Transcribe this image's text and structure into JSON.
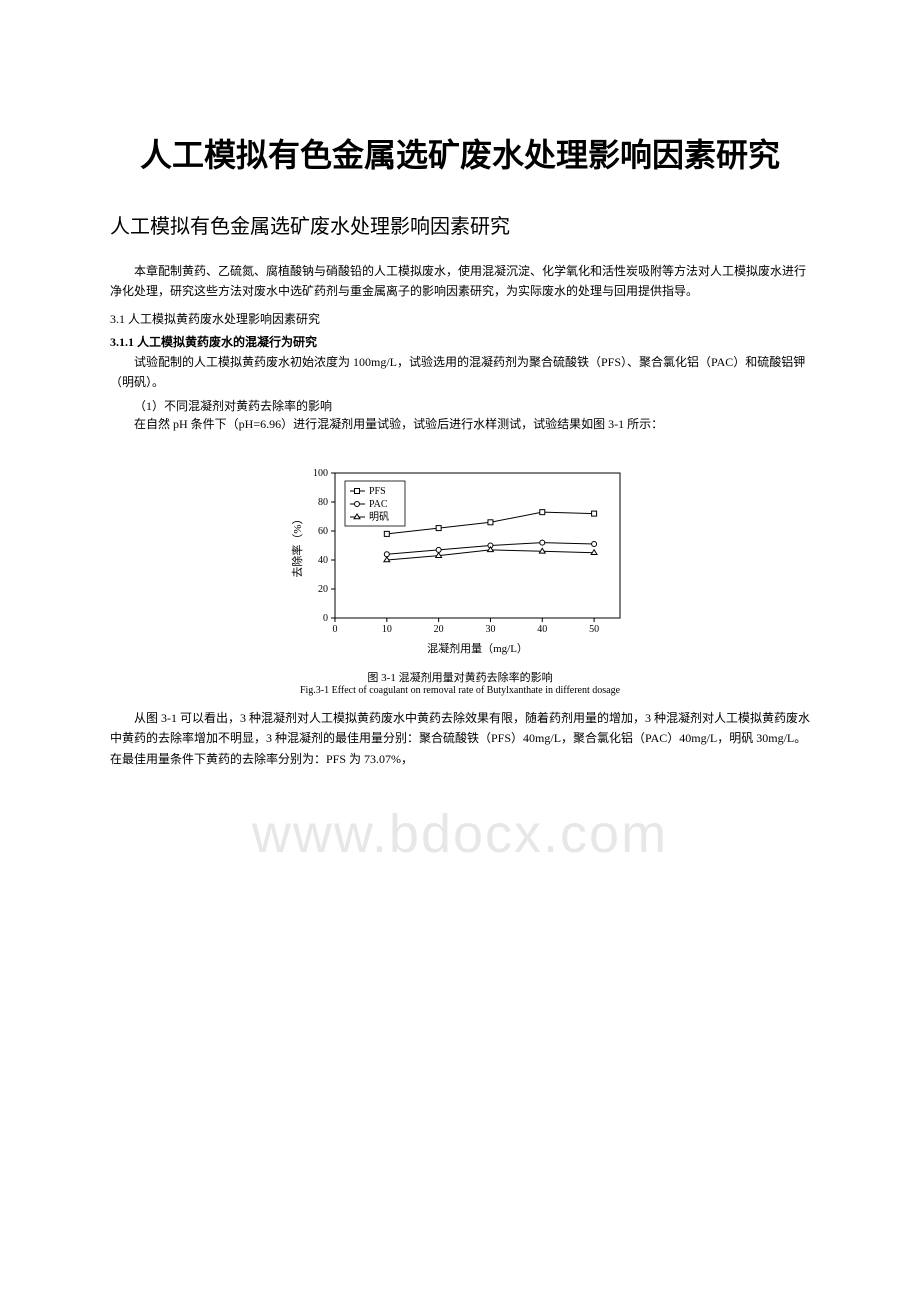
{
  "watermark": "www.bdocx.com",
  "title_main": "人工模拟有色金属选矿废水处理影响因素研究",
  "title_sub": "人工模拟有色金属选矿废水处理影响因素研究",
  "intro_para": "本章配制黄药、乙硫氮、腐植酸钠与硝酸铅的人工模拟废水，使用混凝沉淀、化学氧化和活性炭吸附等方法对人工模拟废水进行净化处理，研究这些方法对废水中选矿药剂与重金属离子的影响因素研究，为实际废水的处理与回用提供指导。",
  "sec31": "3.1 人工模拟黄药废水处理影响因素研究",
  "sec311": "3.1.1 人工模拟黄药废水的混凝行为研究",
  "para_311a": "试验配制的人工模拟黄药废水初始浓度为 100mg/L，试验选用的混凝药剂为聚合硫酸铁（PFS）、聚合氯化铝（PAC）和硫酸铝钾（明矾）。",
  "item1": "（1）不同混凝剂对黄药去除率的影响",
  "para_item1": "在自然 pH 条件下（pH=6.96）进行混凝剂用量试验，试验后进行水样测试，试验结果如图 3-1 所示：",
  "chart": {
    "type": "line",
    "xlabel": "混凝剂用量（mg/L）",
    "ylabel": "去除率（%）",
    "xlim": [
      0,
      55
    ],
    "ylim": [
      0,
      100
    ],
    "xticks": [
      0,
      10,
      20,
      30,
      40,
      50
    ],
    "yticks": [
      0,
      20,
      40,
      60,
      80,
      100
    ],
    "legend_pos": "top-left-inside",
    "series": [
      {
        "name": "PFS",
        "marker": "square",
        "color": "#000000",
        "x": [
          10,
          20,
          30,
          40,
          50
        ],
        "y": [
          58,
          62,
          66,
          73,
          72
        ]
      },
      {
        "name": "PAC",
        "marker": "circle",
        "color": "#000000",
        "x": [
          10,
          20,
          30,
          40,
          50
        ],
        "y": [
          44,
          47,
          50,
          52,
          51
        ]
      },
      {
        "name": "明矾",
        "marker": "triangle",
        "color": "#000000",
        "x": [
          10,
          20,
          30,
          40,
          50
        ],
        "y": [
          40,
          43,
          47,
          46,
          45
        ]
      }
    ],
    "axis_color": "#000000",
    "line_width": 1,
    "marker_size": 5,
    "font_size_axis": 10,
    "font_size_label": 11,
    "font_size_legend": 10,
    "background": "#ffffff"
  },
  "caption_cn": "图 3-1 混凝剂用量对黄药去除率的影响",
  "caption_en": "Fig.3-1 Effect of coagulant on removal rate of Butylxanthate in different dosage",
  "para_after": "从图 3-1 可以看出，3 种混凝剂对人工模拟黄药废水中黄药去除效果有限，随着药剂用量的增加，3 种混凝剂对人工模拟黄药废水中黄药的去除率增加不明显，3 种混凝剂的最佳用量分别：聚合硫酸铁（PFS）40mg/L，聚合氯化铝（PAC）40mg/L，明矾 30mg/L。在最佳用量条件下黄药的去除率分别为：PFS 为 73.07%，"
}
